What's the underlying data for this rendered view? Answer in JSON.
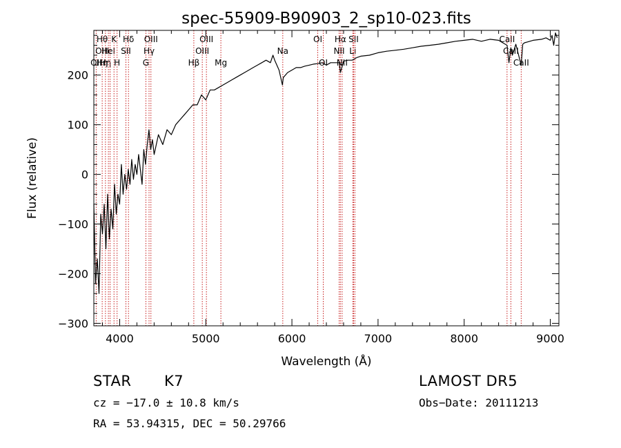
{
  "chart_data": {
    "type": "line",
    "title": "spec-55909-B90903_2_sp10-023.fits",
    "xlabel": "Wavelength (Å)",
    "ylabel": "Flux (relative)",
    "xlim": [
      3700,
      9100
    ],
    "ylim": [
      -305,
      290
    ],
    "xticks": [
      4000,
      5000,
      6000,
      7000,
      8000,
      9000
    ],
    "yticks": [
      -300,
      -200,
      -100,
      0,
      100,
      200
    ],
    "grid": false,
    "series": [
      {
        "color": "#000000",
        "x": [
          3700,
          3720,
          3740,
          3760,
          3780,
          3800,
          3820,
          3840,
          3860,
          3880,
          3900,
          3920,
          3940,
          3960,
          3980,
          4000,
          4020,
          4040,
          4060,
          4080,
          4100,
          4120,
          4140,
          4160,
          4180,
          4200,
          4220,
          4240,
          4260,
          4280,
          4300,
          4320,
          4340,
          4360,
          4380,
          4400,
          4450,
          4500,
          4550,
          4600,
          4650,
          4700,
          4750,
          4800,
          4850,
          4900,
          4950,
          5000,
          5050,
          5100,
          5150,
          5200,
          5250,
          5300,
          5350,
          5400,
          5450,
          5500,
          5550,
          5600,
          5650,
          5700,
          5750,
          5780,
          5800,
          5850,
          5890,
          5900,
          5950,
          6000,
          6050,
          6100,
          6150,
          6200,
          6250,
          6300,
          6350,
          6400,
          6450,
          6500,
          6550,
          6563,
          6600,
          6650,
          6700,
          6750,
          6800,
          6900,
          7000,
          7100,
          7200,
          7300,
          7400,
          7500,
          7600,
          7700,
          7800,
          7900,
          8000,
          8100,
          8200,
          8300,
          8400,
          8498,
          8520,
          8542,
          8560,
          8600,
          8662,
          8680,
          8700,
          8800,
          8900,
          8950,
          9000,
          9020,
          9040,
          9060,
          9080
        ],
        "y": [
          -60,
          -220,
          -170,
          -240,
          -80,
          -120,
          -60,
          -150,
          -40,
          -130,
          -70,
          -110,
          -20,
          -80,
          -40,
          -60,
          20,
          -40,
          0,
          -30,
          10,
          -20,
          30,
          -10,
          20,
          0,
          40,
          10,
          -20,
          50,
          20,
          60,
          90,
          50,
          70,
          40,
          80,
          60,
          90,
          80,
          100,
          110,
          120,
          130,
          140,
          140,
          160,
          150,
          170,
          170,
          175,
          180,
          185,
          190,
          195,
          200,
          205,
          210,
          215,
          220,
          225,
          230,
          225,
          240,
          230,
          210,
          180,
          195,
          205,
          210,
          215,
          215,
          218,
          220,
          222,
          223,
          225,
          220,
          225,
          225,
          225,
          205,
          228,
          230,
          230,
          235,
          238,
          240,
          245,
          248,
          250,
          252,
          255,
          258,
          260,
          262,
          265,
          268,
          270,
          272,
          268,
          272,
          270,
          260,
          225,
          255,
          240,
          262,
          220,
          262,
          265,
          270,
          272,
          275,
          270,
          280,
          260,
          285,
          275
        ]
      }
    ],
    "lines": [
      {
        "wavelength": 3727,
        "labels": [
          "",
          "",
          "OII"
        ]
      },
      {
        "wavelength": 3797,
        "labels": [
          "Hθ",
          "OIII",
          "Hη"
        ]
      },
      {
        "wavelength": 3835,
        "labels": [
          "",
          "",
          "Hη"
        ]
      },
      {
        "wavelength": 3869,
        "labels": [
          "",
          "HeI",
          ""
        ]
      },
      {
        "wavelength": 3889,
        "labels": [
          "",
          "",
          ""
        ]
      },
      {
        "wavelength": 3934,
        "labels": [
          "K",
          "",
          ""
        ]
      },
      {
        "wavelength": 3970,
        "labels": [
          "",
          "",
          "H"
        ]
      },
      {
        "wavelength": 4072,
        "labels": [
          "",
          "SII",
          ""
        ]
      },
      {
        "wavelength": 4102,
        "labels": [
          "Hδ",
          "",
          ""
        ]
      },
      {
        "wavelength": 4304,
        "labels": [
          "",
          "",
          "G"
        ]
      },
      {
        "wavelength": 4341,
        "labels": [
          "",
          "Hγ",
          ""
        ]
      },
      {
        "wavelength": 4363,
        "labels": [
          "OIII",
          "",
          ""
        ]
      },
      {
        "wavelength": 4861,
        "labels": [
          "",
          "",
          "Hβ"
        ]
      },
      {
        "wavelength": 4959,
        "labels": [
          "",
          "OIII",
          ""
        ]
      },
      {
        "wavelength": 5007,
        "labels": [
          "OIII",
          "",
          ""
        ]
      },
      {
        "wavelength": 5175,
        "labels": [
          "",
          "",
          "Mg"
        ]
      },
      {
        "wavelength": 5894,
        "labels": [
          "",
          "Na",
          ""
        ]
      },
      {
        "wavelength": 6300,
        "labels": [
          "OI",
          "",
          ""
        ]
      },
      {
        "wavelength": 6364,
        "labels": [
          "",
          "",
          "OI"
        ]
      },
      {
        "wavelength": 6548,
        "labels": [
          "",
          "NII",
          ""
        ]
      },
      {
        "wavelength": 6563,
        "labels": [
          "Hα",
          "",
          ""
        ]
      },
      {
        "wavelength": 6583,
        "labels": [
          "",
          "",
          "NII"
        ]
      },
      {
        "wavelength": 6707,
        "labels": [
          "",
          "Li",
          ""
        ]
      },
      {
        "wavelength": 6716,
        "labels": [
          "SII",
          "",
          ""
        ]
      },
      {
        "wavelength": 6731,
        "labels": [
          "",
          "",
          ""
        ]
      },
      {
        "wavelength": 8498,
        "labels": [
          "CaII",
          "",
          ""
        ]
      },
      {
        "wavelength": 8542,
        "labels": [
          "",
          "CaII",
          ""
        ]
      },
      {
        "wavelength": 8662,
        "labels": [
          "",
          "",
          "CaII"
        ]
      }
    ]
  },
  "info": {
    "object_type": "STAR",
    "subclass": "K7",
    "survey": "LAMOST  DR5",
    "velocity": "cz = −17.0 ± 10.8 km/s",
    "coordinates": "RA =  53.94315, DEC =  50.29766",
    "obs_date": "Obs−Date: 20111213"
  },
  "colors": {
    "background": "#ffffff",
    "spectrum": "#000000",
    "line_marker": "#c00000"
  }
}
